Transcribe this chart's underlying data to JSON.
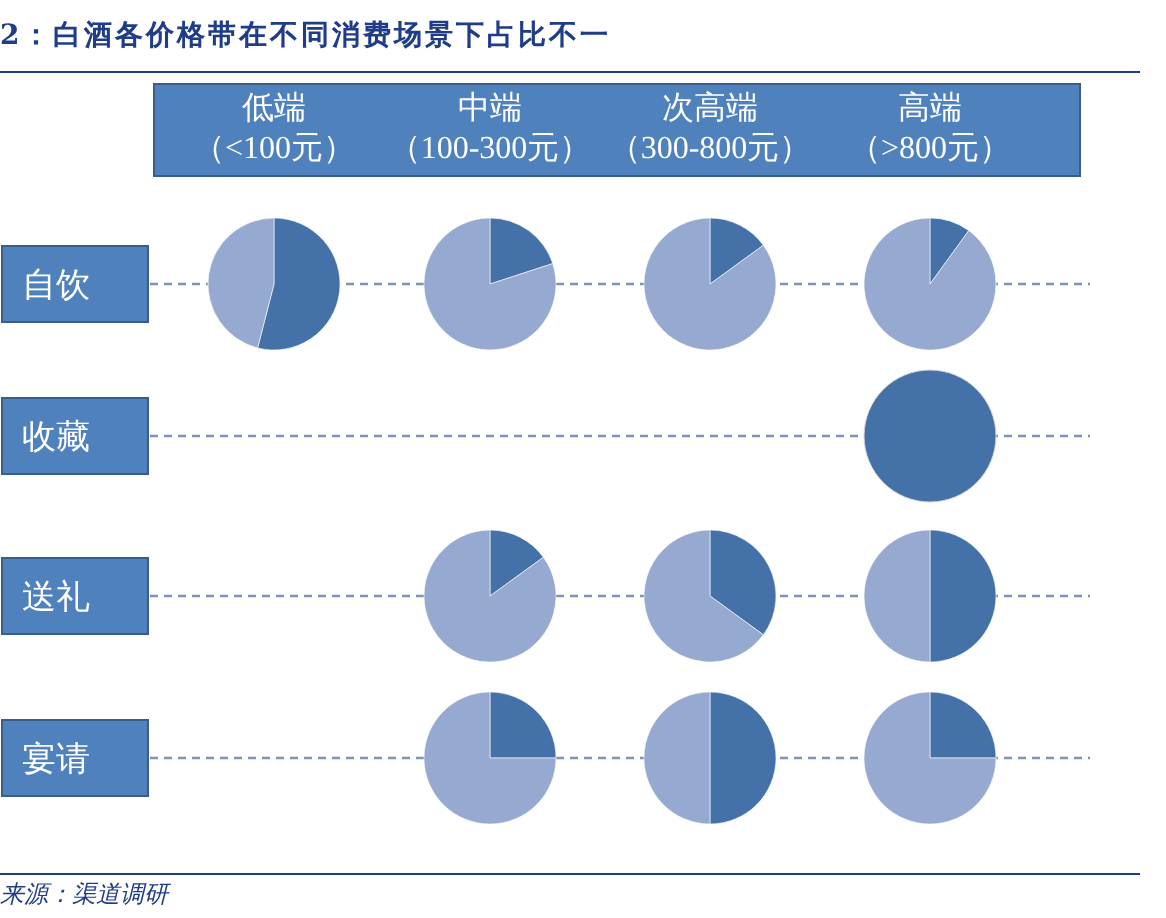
{
  "chart_data": [
    {
      "type": "other",
      "title": "2：白酒各价格带在不同消费场景下占比不一",
      "categories": [
        "低端",
        "中端",
        "次高端",
        "高端"
      ],
      "y_categories": [
        "自饮",
        "收藏",
        "送礼",
        "宴请"
      ],
      "annotations": [
        "（<100元）",
        "（100-300元）",
        "（300-800元）",
        "（>800元）",
        "来源：渠道调研"
      ]
    },
    {
      "type": "pie",
      "categories": [
        null,
        null
      ],
      "values": [
        54,
        46
      ],
      "colors": [
        "#4472a8",
        "#95a9d1"
      ]
    },
    {
      "type": "pie",
      "categories": [
        null,
        null
      ],
      "values": [
        20,
        80
      ],
      "colors": [
        "#4472a8",
        "#95a9d1"
      ]
    },
    {
      "type": "pie",
      "categories": [
        null,
        null
      ],
      "values": [
        15,
        85
      ],
      "colors": [
        "#4472a8",
        "#95a9d1"
      ]
    },
    {
      "type": "pie",
      "categories": [
        null,
        null
      ],
      "values": [
        10,
        90
      ],
      "colors": [
        "#4472a8",
        "#95a9d1"
      ]
    },
    {
      "type": "pie",
      "categories": [
        null
      ],
      "values": [
        100
      ],
      "colors": [
        "#4472a8"
      ]
    },
    {
      "type": "pie",
      "categories": [
        null,
        null
      ],
      "values": [
        15,
        85
      ],
      "colors": [
        "#4472a8",
        "#95a9d1"
      ]
    },
    {
      "type": "pie",
      "categories": [
        null,
        null
      ],
      "values": [
        35,
        65
      ],
      "colors": [
        "#4472a8",
        "#95a9d1"
      ]
    },
    {
      "type": "pie",
      "categories": [
        null,
        null
      ],
      "values": [
        50,
        50
      ],
      "colors": [
        "#4472a8",
        "#95a9d1"
      ]
    },
    {
      "type": "pie",
      "categories": [
        null,
        null
      ],
      "values": [
        25,
        75
      ],
      "colors": [
        "#4472a8",
        "#95a9d1"
      ]
    },
    {
      "type": "pie",
      "categories": [
        null,
        null
      ],
      "values": [
        50,
        50
      ],
      "colors": [
        "#4472a8",
        "#95a9d1"
      ]
    },
    {
      "type": "pie",
      "categories": [
        null,
        null
      ],
      "values": [
        25,
        75
      ],
      "colors": [
        "#4472a8",
        "#95a9d1"
      ]
    }
  ]
}
